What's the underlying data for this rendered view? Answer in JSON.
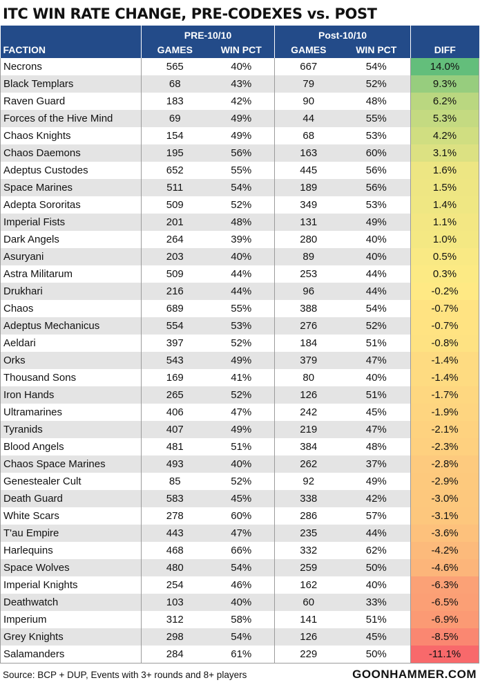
{
  "title": "ITC WIN RATE CHANGE, PRE-CODEXES vs. POST",
  "headers": {
    "faction": "FACTION",
    "pre_group": "PRE-10/10",
    "post_group": "Post-10/10",
    "games": "GAMES",
    "win_pct": "WIN PCT",
    "diff": "DIFF"
  },
  "footer": {
    "source": "Source: BCP + DUP, Events with 3+ rounds and 8+ players",
    "brand": "GOONHAMMER.COM"
  },
  "colors": {
    "header_bg": "#234b89",
    "header_text": "#ffffff",
    "row_alt": "#e4e4e4",
    "scale_high": "#63be7b",
    "scale_mid": "#ffeb84",
    "scale_low": "#f8696b"
  },
  "chart_data": {
    "type": "table",
    "title": "ITC WIN RATE CHANGE, PRE-CODEXES vs. POST",
    "columns": [
      "FACTION",
      "GAMES",
      "WIN PCT",
      "GAMES",
      "WIN PCT",
      "DIFF"
    ],
    "column_groups": [
      {
        "label": "PRE-10/10",
        "columns": [
          "GAMES",
          "WIN PCT"
        ]
      },
      {
        "label": "Post-10/10",
        "columns": [
          "GAMES",
          "WIN PCT"
        ]
      }
    ],
    "rows": [
      {
        "faction": "Necrons",
        "pre_games": "565",
        "pre_win": "40%",
        "post_games": "667",
        "post_win": "54%",
        "diff": "14.0%",
        "diff_value": 14.0
      },
      {
        "faction": "Black Templars",
        "pre_games": "68",
        "pre_win": "43%",
        "post_games": "79",
        "post_win": "52%",
        "diff": "9.3%",
        "diff_value": 9.3
      },
      {
        "faction": "Raven Guard",
        "pre_games": "183",
        "pre_win": "42%",
        "post_games": "90",
        "post_win": "48%",
        "diff": "6.2%",
        "diff_value": 6.2
      },
      {
        "faction": "Forces of the Hive Mind",
        "pre_games": "69",
        "pre_win": "49%",
        "post_games": "44",
        "post_win": "55%",
        "diff": "5.3%",
        "diff_value": 5.3
      },
      {
        "faction": "Chaos Knights",
        "pre_games": "154",
        "pre_win": "49%",
        "post_games": "68",
        "post_win": "53%",
        "diff": "4.2%",
        "diff_value": 4.2
      },
      {
        "faction": "Chaos Daemons",
        "pre_games": "195",
        "pre_win": "56%",
        "post_games": "163",
        "post_win": "60%",
        "diff": "3.1%",
        "diff_value": 3.1
      },
      {
        "faction": "Adeptus Custodes",
        "pre_games": "652",
        "pre_win": "55%",
        "post_games": "445",
        "post_win": "56%",
        "diff": "1.6%",
        "diff_value": 1.6
      },
      {
        "faction": "Space Marines",
        "pre_games": "511",
        "pre_win": "54%",
        "post_games": "189",
        "post_win": "56%",
        "diff": "1.5%",
        "diff_value": 1.5
      },
      {
        "faction": "Adepta Sororitas",
        "pre_games": "509",
        "pre_win": "52%",
        "post_games": "349",
        "post_win": "53%",
        "diff": "1.4%",
        "diff_value": 1.4
      },
      {
        "faction": "Imperial Fists",
        "pre_games": "201",
        "pre_win": "48%",
        "post_games": "131",
        "post_win": "49%",
        "diff": "1.1%",
        "diff_value": 1.1
      },
      {
        "faction": "Dark Angels",
        "pre_games": "264",
        "pre_win": "39%",
        "post_games": "280",
        "post_win": "40%",
        "diff": "1.0%",
        "diff_value": 1.0
      },
      {
        "faction": "Asuryani",
        "pre_games": "203",
        "pre_win": "40%",
        "post_games": "89",
        "post_win": "40%",
        "diff": "0.5%",
        "diff_value": 0.5
      },
      {
        "faction": "Astra Militarum",
        "pre_games": "509",
        "pre_win": "44%",
        "post_games": "253",
        "post_win": "44%",
        "diff": "0.3%",
        "diff_value": 0.3
      },
      {
        "faction": "Drukhari",
        "pre_games": "216",
        "pre_win": "44%",
        "post_games": "96",
        "post_win": "44%",
        "diff": "-0.2%",
        "diff_value": -0.2
      },
      {
        "faction": "Chaos",
        "pre_games": "689",
        "pre_win": "55%",
        "post_games": "388",
        "post_win": "54%",
        "diff": "-0.7%",
        "diff_value": -0.7
      },
      {
        "faction": "Adeptus Mechanicus",
        "pre_games": "554",
        "pre_win": "53%",
        "post_games": "276",
        "post_win": "52%",
        "diff": "-0.7%",
        "diff_value": -0.7
      },
      {
        "faction": "Aeldari",
        "pre_games": "397",
        "pre_win": "52%",
        "post_games": "184",
        "post_win": "51%",
        "diff": "-0.8%",
        "diff_value": -0.8
      },
      {
        "faction": "Orks",
        "pre_games": "543",
        "pre_win": "49%",
        "post_games": "379",
        "post_win": "47%",
        "diff": "-1.4%",
        "diff_value": -1.4
      },
      {
        "faction": "Thousand Sons",
        "pre_games": "169",
        "pre_win": "41%",
        "post_games": "80",
        "post_win": "40%",
        "diff": "-1.4%",
        "diff_value": -1.4
      },
      {
        "faction": "Iron Hands",
        "pre_games": "265",
        "pre_win": "52%",
        "post_games": "126",
        "post_win": "51%",
        "diff": "-1.7%",
        "diff_value": -1.7
      },
      {
        "faction": "Ultramarines",
        "pre_games": "406",
        "pre_win": "47%",
        "post_games": "242",
        "post_win": "45%",
        "diff": "-1.9%",
        "diff_value": -1.9
      },
      {
        "faction": "Tyranids",
        "pre_games": "407",
        "pre_win": "49%",
        "post_games": "219",
        "post_win": "47%",
        "diff": "-2.1%",
        "diff_value": -2.1
      },
      {
        "faction": "Blood Angels",
        "pre_games": "481",
        "pre_win": "51%",
        "post_games": "384",
        "post_win": "48%",
        "diff": "-2.3%",
        "diff_value": -2.3
      },
      {
        "faction": "Chaos Space Marines",
        "pre_games": "493",
        "pre_win": "40%",
        "post_games": "262",
        "post_win": "37%",
        "diff": "-2.8%",
        "diff_value": -2.8
      },
      {
        "faction": "Genestealer Cult",
        "pre_games": "85",
        "pre_win": "52%",
        "post_games": "92",
        "post_win": "49%",
        "diff": "-2.9%",
        "diff_value": -2.9
      },
      {
        "faction": "Death Guard",
        "pre_games": "583",
        "pre_win": "45%",
        "post_games": "338",
        "post_win": "42%",
        "diff": "-3.0%",
        "diff_value": -3.0
      },
      {
        "faction": "White Scars",
        "pre_games": "278",
        "pre_win": "60%",
        "post_games": "286",
        "post_win": "57%",
        "diff": "-3.1%",
        "diff_value": -3.1
      },
      {
        "faction": "T'au Empire",
        "pre_games": "443",
        "pre_win": "47%",
        "post_games": "235",
        "post_win": "44%",
        "diff": "-3.6%",
        "diff_value": -3.6
      },
      {
        "faction": "Harlequins",
        "pre_games": "468",
        "pre_win": "66%",
        "post_games": "332",
        "post_win": "62%",
        "diff": "-4.2%",
        "diff_value": -4.2
      },
      {
        "faction": "Space Wolves",
        "pre_games": "480",
        "pre_win": "54%",
        "post_games": "259",
        "post_win": "50%",
        "diff": "-4.6%",
        "diff_value": -4.6
      },
      {
        "faction": "Imperial Knights",
        "pre_games": "254",
        "pre_win": "46%",
        "post_games": "162",
        "post_win": "40%",
        "diff": "-6.3%",
        "diff_value": -6.3
      },
      {
        "faction": "Deathwatch",
        "pre_games": "103",
        "pre_win": "40%",
        "post_games": "60",
        "post_win": "33%",
        "diff": "-6.5%",
        "diff_value": -6.5
      },
      {
        "faction": "Imperium",
        "pre_games": "312",
        "pre_win": "58%",
        "post_games": "141",
        "post_win": "51%",
        "diff": "-6.9%",
        "diff_value": -6.9
      },
      {
        "faction": "Grey Knights",
        "pre_games": "298",
        "pre_win": "54%",
        "post_games": "126",
        "post_win": "45%",
        "diff": "-8.5%",
        "diff_value": -8.5
      },
      {
        "faction": "Salamanders",
        "pre_games": "284",
        "pre_win": "61%",
        "post_games": "229",
        "post_win": "50%",
        "diff": "-11.1%",
        "diff_value": -11.1
      }
    ]
  }
}
